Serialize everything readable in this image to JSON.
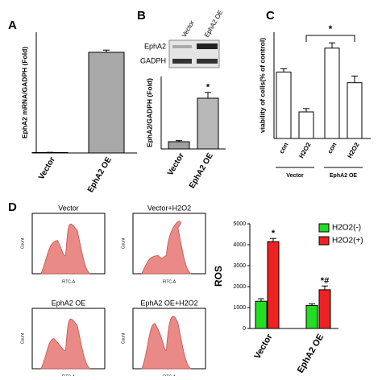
{
  "panel_labels": [
    "A",
    "B",
    "C",
    "D"
  ],
  "chart_data": [
    {
      "type": "bar",
      "ylabel": "EphA2 mRNA/GADPH (Fold)",
      "categories": [
        "Vector",
        "EphA2 OE"
      ],
      "values": [
        2,
        450
      ],
      "errors": [
        1,
        10
      ],
      "colors": [
        "#d0d0d0",
        "#a8a8a8"
      ],
      "ylim": [
        0,
        540
      ]
    },
    {
      "type": "bar",
      "ylabel": "EphA2/GADPH (Fold)",
      "blot": {
        "rows": [
          "EphA2",
          "GADPH"
        ],
        "columns": [
          "Vector",
          "EphA2 OE"
        ]
      },
      "categories": [
        "Vector",
        "EphA2 OE"
      ],
      "values": [
        1,
        7
      ],
      "errors": [
        0.15,
        0.8
      ],
      "significance": [
        null,
        "*"
      ],
      "colors": [
        "#a0a0a0",
        "#b8b8b8"
      ],
      "ylim": [
        0,
        10
      ]
    },
    {
      "type": "bar",
      "ylabel": "viability of cells(% of control)",
      "categories": [
        "con",
        "H2O2",
        "con",
        "H2O2"
      ],
      "groups": [
        "Vector",
        "EphA2 OE"
      ],
      "values": [
        100,
        40,
        136,
        84
      ],
      "errors": [
        5,
        5,
        8,
        10
      ],
      "colors": [
        "#ffffff",
        "#ffffff",
        "#ffffff",
        "#ffffff"
      ],
      "bracket": "*",
      "ylim": [
        0,
        160
      ]
    },
    {
      "type": "flow",
      "titles": [
        "Vector",
        "Vector+H2O2",
        "EphA2 OE",
        "EphA2 OE+H2O2"
      ],
      "xlabel": "FITC-A",
      "ylabel": "Count"
    },
    {
      "type": "bar",
      "ylabel": "ROS",
      "categories": [
        "Vector",
        "EphA2 OE"
      ],
      "series": [
        {
          "name": "H2O2(-)",
          "color": "#22dd22",
          "values": [
            1300,
            1100
          ],
          "errors": [
            120,
            80
          ],
          "significance": [
            null,
            null
          ]
        },
        {
          "name": "H2O2(+)",
          "color": "#ee2222",
          "values": [
            4150,
            1850
          ],
          "errors": [
            150,
            180
          ],
          "significance": [
            "*",
            "*#"
          ]
        }
      ],
      "ylim": [
        0,
        5000
      ],
      "yticks": [
        0,
        1000,
        2000,
        3000,
        4000,
        5000
      ],
      "legend": "upper right"
    }
  ]
}
